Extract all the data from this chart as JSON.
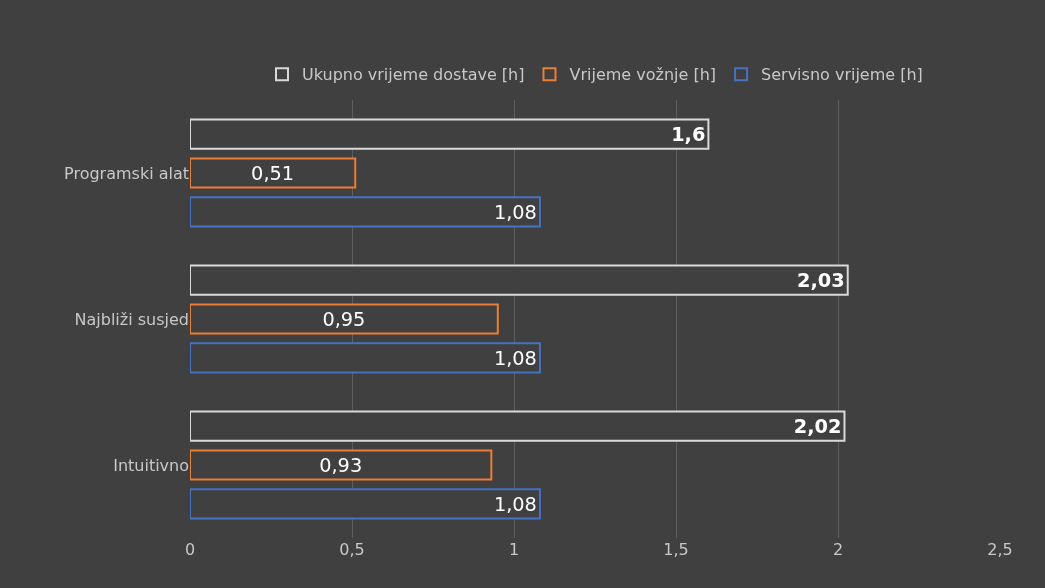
{
  "chart_data": {
    "type": "bar",
    "orientation": "horizontal",
    "categories": [
      "Programski alat",
      "Najbliži susjed",
      "Intuitivno"
    ],
    "series": [
      {
        "name": "Ukupno vrijeme dostave [h]",
        "color": "#d9d9d9",
        "values": [
          1.6,
          2.03,
          2.02
        ],
        "value_labels": [
          "1,6",
          "2,03",
          "2,02"
        ]
      },
      {
        "name": "Vrijeme vožnje [h]",
        "color": "#ed7d31",
        "values": [
          0.51,
          0.95,
          0.93
        ],
        "value_labels": [
          "0,51",
          "0,95",
          "0,93"
        ]
      },
      {
        "name": "Servisno vrijeme [h]",
        "color": "#4472c4",
        "values": [
          1.08,
          1.08,
          1.08
        ],
        "value_labels": [
          "1,08",
          "1,08",
          "1,08"
        ]
      }
    ],
    "xlim": [
      0,
      2.5
    ],
    "xticks": [
      {
        "value": 0,
        "label": "0"
      },
      {
        "value": 0.5,
        "label": "0,5"
      },
      {
        "value": 1,
        "label": "1"
      },
      {
        "value": 1.5,
        "label": "1,5"
      },
      {
        "value": 2,
        "label": "2"
      },
      {
        "value": 2.5,
        "label": "2,5"
      }
    ],
    "grid": "x",
    "legend": "top"
  }
}
